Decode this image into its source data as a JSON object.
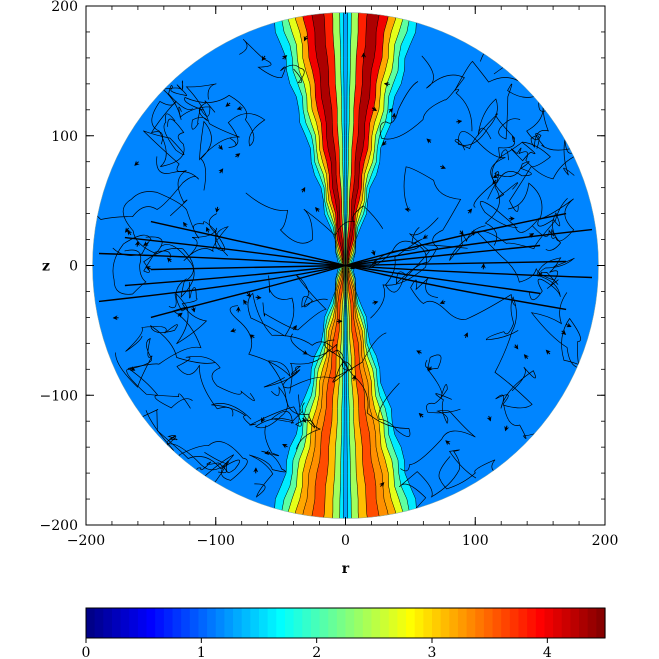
{
  "chart_data": {
    "type": "heatmap",
    "title": "",
    "xlabel": "r",
    "ylabel": "z",
    "xlim": [
      -200,
      200
    ],
    "ylim": [
      -200,
      200
    ],
    "x_ticks": [
      -200,
      -100,
      0,
      100,
      200
    ],
    "y_ticks": [
      -200,
      -100,
      0,
      100,
      200
    ],
    "x_tick_labels": [
      "−200",
      "−100",
      "0",
      "100",
      "200"
    ],
    "y_tick_labels": [
      "−200",
      "−100",
      "0",
      "100",
      "200"
    ],
    "domain_radius": 195,
    "background_value": 1.15,
    "overlay": "streamlines with arrowheads and contour lines (black)",
    "jet_structure": {
      "upper_outer_jet_peak": 4.3,
      "lower_outer_jet_peak": 3.6,
      "axis_value": 1.3,
      "description": "bipolar outflow cones along the z-axis, high values in cone walls, low value on the axis"
    },
    "colorbar": {
      "min": 0,
      "max": 4.5,
      "ticks": [
        0,
        1,
        2,
        3,
        4
      ],
      "tick_labels": [
        "0",
        "1",
        "2",
        "3",
        "4"
      ],
      "colormap": [
        "#00007f",
        "#0000ff",
        "#007fff",
        "#00ffff",
        "#7fff7f",
        "#ffff00",
        "#ff7f00",
        "#ff0000",
        "#7f0000"
      ]
    }
  }
}
